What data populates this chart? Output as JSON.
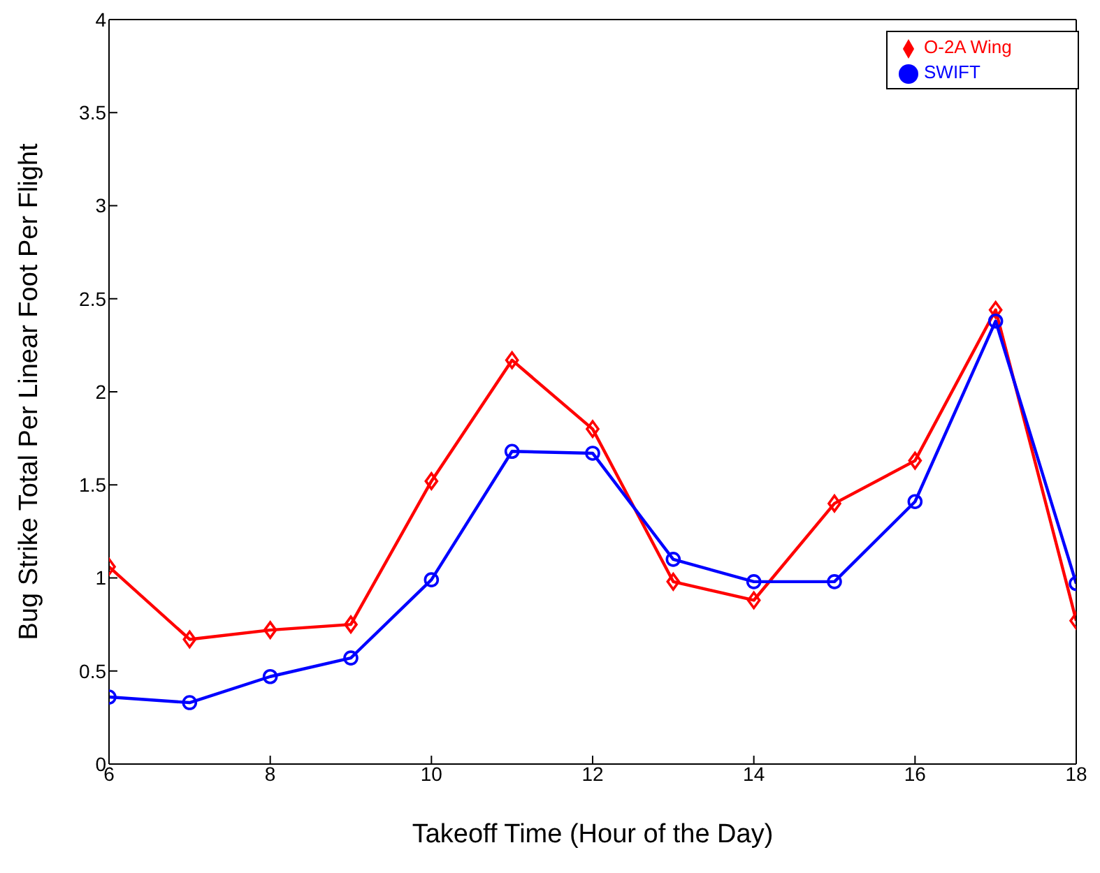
{
  "chart_data": {
    "type": "line",
    "xlabel": "Takeoff Time (Hour of the Day)",
    "ylabel": "Bug Strike Total Per Linear Foot Per Flight",
    "x": [
      6,
      7,
      8,
      9,
      10,
      11,
      12,
      13,
      14,
      15,
      16,
      17,
      18
    ],
    "series": [
      {
        "name": "O-2A Wing",
        "color": "#ff0000",
        "marker": "diamond",
        "values": [
          1.06,
          0.67,
          0.72,
          0.75,
          1.52,
          2.17,
          1.8,
          0.98,
          0.88,
          1.4,
          1.63,
          2.44,
          0.77
        ]
      },
      {
        "name": "SWIFT",
        "color": "#0000ff",
        "marker": "circle",
        "values": [
          0.36,
          0.33,
          0.47,
          0.57,
          0.99,
          1.68,
          1.67,
          1.1,
          0.98,
          0.98,
          1.41,
          2.38,
          0.97
        ]
      }
    ],
    "xlim": [
      6,
      18
    ],
    "xticks": [
      6,
      8,
      10,
      12,
      14,
      16,
      18
    ],
    "ylim": [
      0,
      4
    ],
    "yticks": [
      0,
      0.5,
      1,
      1.5,
      2,
      2.5,
      3,
      3.5,
      4
    ],
    "grid": false,
    "legend": "top right",
    "line_style": "solid"
  }
}
